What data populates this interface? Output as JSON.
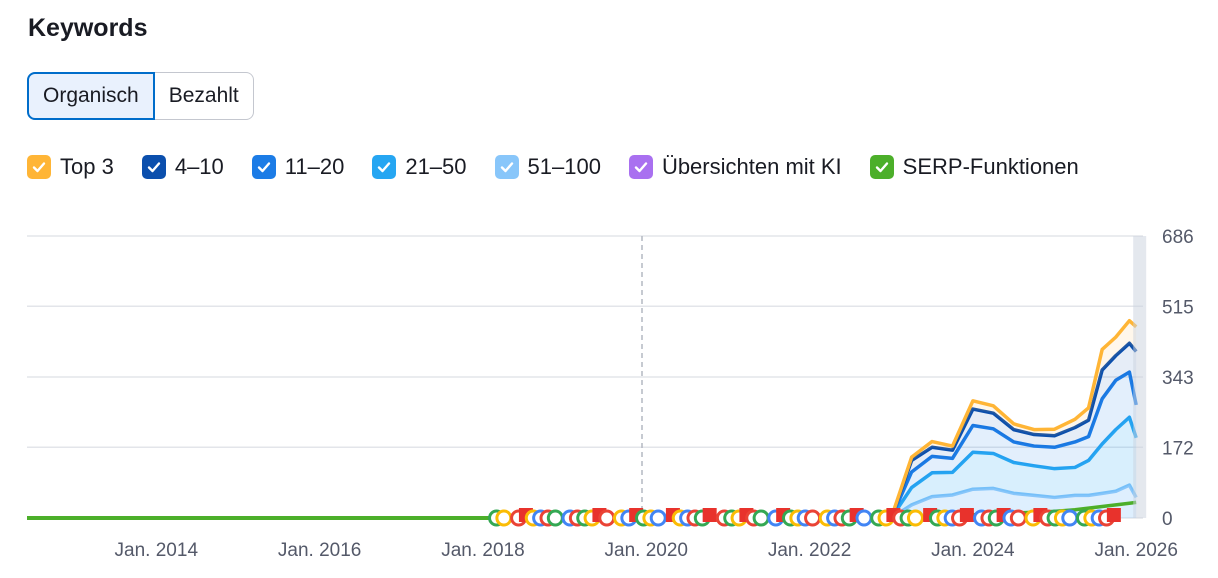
{
  "title": "Keywords",
  "tabs": [
    {
      "label": "Organisch",
      "active": true
    },
    {
      "label": "Bezahlt",
      "active": false
    }
  ],
  "legend": [
    {
      "label": "Top 3",
      "color": "#ffb536",
      "checked": true
    },
    {
      "label": "4–10",
      "color": "#0b4fad",
      "checked": true
    },
    {
      "label": "11–20",
      "color": "#1c7ce6",
      "checked": true
    },
    {
      "label": "21–50",
      "color": "#26a6f2",
      "checked": true
    },
    {
      "label": "51–100",
      "color": "#88c6fa",
      "checked": true
    },
    {
      "label": "Übersichten mit KI",
      "color": "#a970f0",
      "checked": true
    },
    {
      "label": "SERP-Funktionen",
      "color": "#4caf2a",
      "checked": true
    }
  ],
  "chart_data": {
    "type": "area",
    "stacked": true,
    "x_range": [
      "2012-06",
      "2026-02"
    ],
    "y_ticks": [
      0,
      172,
      343,
      515,
      686
    ],
    "ylim": [
      0,
      686
    ],
    "x_ticks": [
      "Jan. 2014",
      "Jan. 2016",
      "Jan. 2018",
      "Jan. 2020",
      "Jan. 2022",
      "Jan. 2024",
      "Jan. 2026"
    ],
    "grid": true,
    "x": [
      "2023-01",
      "2023-04",
      "2023-07",
      "2023-10",
      "2024-01",
      "2024-04",
      "2024-07",
      "2024-10",
      "2025-01",
      "2025-04",
      "2025-06",
      "2025-08",
      "2025-10",
      "2025-12",
      "2026-01"
    ],
    "series": [
      {
        "name": "51–100",
        "color": "#88c6fa",
        "values": [
          0,
          32,
          52,
          56,
          70,
          72,
          60,
          55,
          50,
          55,
          55,
          60,
          65,
          80,
          50
        ]
      },
      {
        "name": "21–50",
        "color": "#26a6f2",
        "values": [
          0,
          42,
          58,
          55,
          90,
          85,
          75,
          72,
          70,
          68,
          85,
          120,
          150,
          165,
          145
        ]
      },
      {
        "name": "11–20",
        "color": "#1c7ce6",
        "values": [
          0,
          38,
          40,
          34,
          65,
          60,
          50,
          48,
          52,
          62,
          58,
          110,
          120,
          110,
          80
        ]
      },
      {
        "name": "4–10",
        "color": "#0b4fad",
        "values": [
          0,
          28,
          22,
          20,
          40,
          38,
          30,
          28,
          28,
          35,
          40,
          70,
          60,
          70,
          130
        ]
      },
      {
        "name": "Top 3",
        "color": "#ffb536",
        "values": [
          0,
          8,
          14,
          10,
          20,
          18,
          14,
          12,
          16,
          20,
          30,
          50,
          45,
          55,
          60
        ]
      },
      {
        "name": "SERP-Funktionen",
        "color": "#4caf2a",
        "line_only": true,
        "values": [
          2,
          3,
          4,
          5,
          8,
          10,
          12,
          14,
          16,
          20,
          24,
          28,
          32,
          36,
          38
        ]
      }
    ],
    "serp_line_flat_value": 0,
    "event_markers": {
      "x_range": [
        "2018-03",
        "2025-10"
      ],
      "icons": [
        "google-update-icon",
        "note-flag-icon"
      ]
    }
  }
}
